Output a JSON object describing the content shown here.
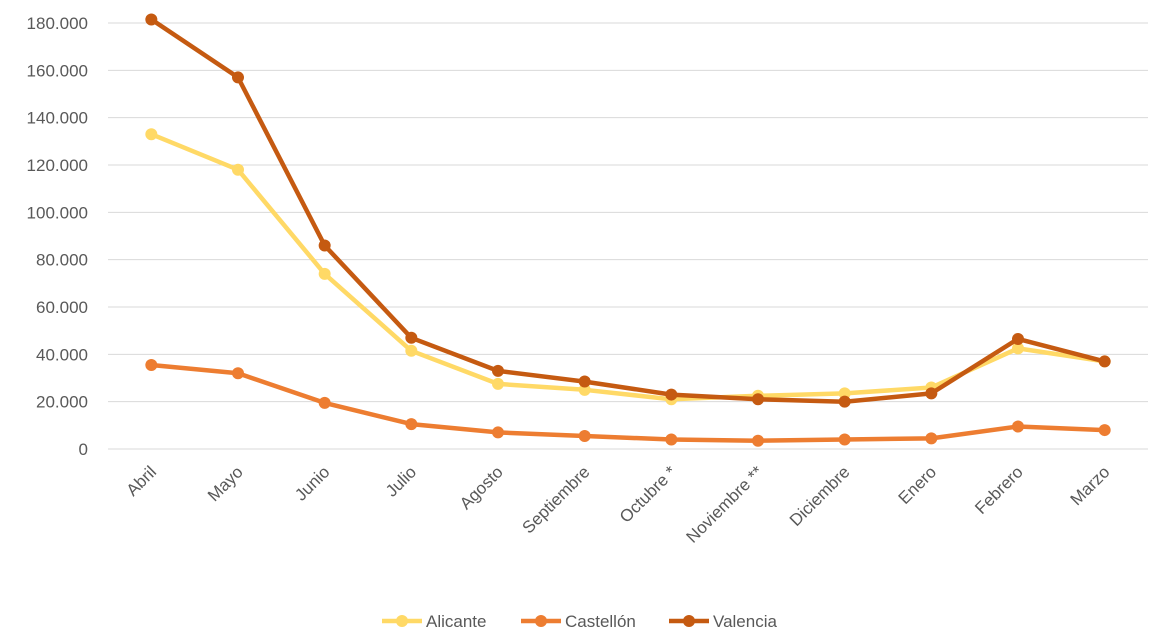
{
  "chart_data": {
    "type": "line",
    "categories": [
      "Abril",
      "Mayo",
      "Junio",
      "Julio",
      "Agosto",
      "Septiembre",
      "Octubre *",
      "Noviembre **",
      "Diciembre",
      "Enero",
      "Febrero",
      "Marzo"
    ],
    "series": [
      {
        "name": "Alicante",
        "color": "#FFD966",
        "values": [
          133000,
          118000,
          74000,
          41500,
          27500,
          25000,
          21000,
          22500,
          23500,
          26000,
          42500,
          37000
        ]
      },
      {
        "name": "Castellón",
        "color": "#ED7D31",
        "values": [
          35500,
          32000,
          19500,
          10500,
          7000,
          5500,
          4000,
          3500,
          4000,
          4500,
          9500,
          8000
        ]
      },
      {
        "name": "Valencia",
        "color": "#C55A11",
        "values": [
          181500,
          157000,
          86000,
          47000,
          33000,
          28500,
          23000,
          21000,
          20000,
          23500,
          46500,
          37000
        ]
      }
    ],
    "yticks": [
      "0",
      "20.000",
      "40.000",
      "60.000",
      "80.000",
      "100.000",
      "120.000",
      "140.000",
      "160.000",
      "180.000"
    ],
    "ylim": [
      0,
      180000
    ],
    "grid": true,
    "legend_position": "bottom"
  }
}
